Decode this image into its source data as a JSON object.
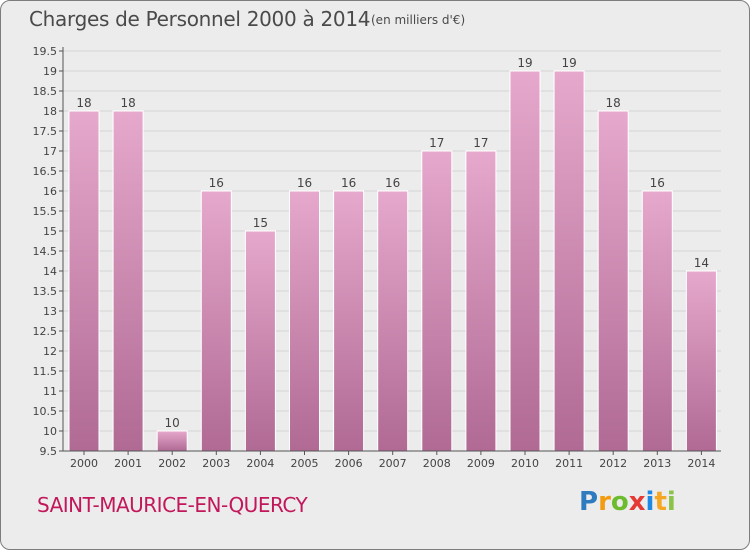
{
  "header": {
    "title": "Charges de Personnel 2000 à 2014",
    "subtitle": "(en milliers d'€)"
  },
  "footer": {
    "commune": "SAINT-MAURICE-EN-QUERCY",
    "logo_letters": [
      "P",
      "r",
      "o",
      "x",
      "i",
      "t",
      "i"
    ]
  },
  "colors": {
    "bar_top": "#e6a8cc",
    "bar_bottom": "#b06a94",
    "grid": "#d4d4d4",
    "axis": "#555555",
    "commune": "#c2185b"
  },
  "chart_data": {
    "type": "bar",
    "title": "Charges de Personnel 2000 à 2014",
    "subtitle": "(en milliers d'€)",
    "categories": [
      "2000",
      "2001",
      "2002",
      "2003",
      "2004",
      "2005",
      "2006",
      "2007",
      "2008",
      "2009",
      "2010",
      "2011",
      "2012",
      "2013",
      "2014"
    ],
    "values": [
      18,
      18,
      10,
      16,
      15,
      16,
      16,
      16,
      17,
      17,
      19,
      19,
      18,
      16,
      14
    ],
    "labels": [
      "18",
      "18",
      "10",
      "16",
      "15",
      "16",
      "16",
      "16",
      "17",
      "17",
      "19",
      "19",
      "18",
      "16",
      "14"
    ],
    "yticks": [
      "9.5",
      "10",
      "10.5",
      "11",
      "11.5",
      "12",
      "12.5",
      "13",
      "13.5",
      "14",
      "14.5",
      "15",
      "15.5",
      "16",
      "16.5",
      "17",
      "17.5",
      "18",
      "18.5",
      "19",
      "19.5"
    ],
    "ylim": [
      9.5,
      19.5
    ],
    "xlabel": "",
    "ylabel": "",
    "grid": true
  }
}
